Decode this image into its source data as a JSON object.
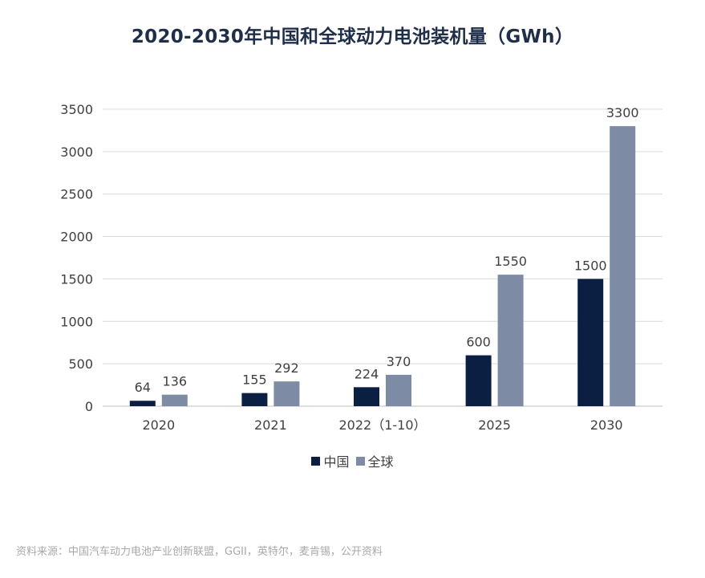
{
  "chart_data": {
    "type": "bar",
    "title": "2020-2030年中国和全球动力电池装机量（GWh）",
    "categories": [
      "2020",
      "2021",
      "2022（1-10）",
      "2025",
      "2030"
    ],
    "series": [
      {
        "name": "中国",
        "values": [
          64,
          155,
          224,
          600,
          1500
        ],
        "color": "#0b1f43"
      },
      {
        "name": "全球",
        "values": [
          136,
          292,
          370,
          1550,
          3300
        ],
        "color": "#7d8ba5"
      }
    ],
    "ylim": [
      0,
      3500
    ],
    "yticks": [
      0,
      500,
      1000,
      1500,
      2000,
      2500,
      3000,
      3500
    ],
    "grid": true,
    "legend_position": "bottom-center"
  },
  "source_text": "资料来源：中国汽车动力电池产业创新联盟，GGII，英特尔，麦肯锡，公开资料"
}
